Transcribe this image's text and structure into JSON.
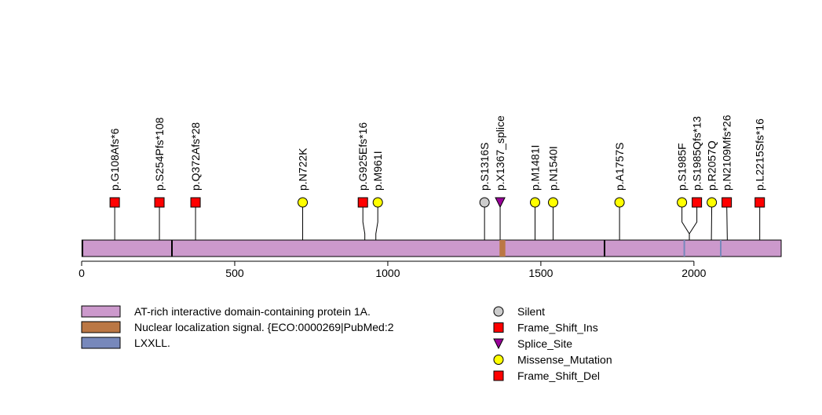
{
  "chart_data": {
    "type": "lollipop",
    "title": "",
    "protein_length": 2285,
    "axis": {
      "xlim": [
        0,
        2285
      ],
      "ticks": [
        0,
        500,
        1000,
        1500,
        2000
      ],
      "tick_labels": [
        "0",
        "500",
        "1000",
        "1500",
        "2000"
      ]
    },
    "mutation_types": [
      {
        "name": "Silent",
        "color": "#cccccc",
        "shape": "circle"
      },
      {
        "name": "Frame_Shift_Ins",
        "color": "#ff0000",
        "shape": "square"
      },
      {
        "name": "Splice_Site",
        "color": "#990099",
        "shape": "triangle"
      },
      {
        "name": "Missense_Mutation",
        "color": "#ffff00",
        "shape": "circle"
      },
      {
        "name": "Frame_Shift_Del",
        "color": "#ff0000",
        "shape": "square"
      }
    ],
    "domains": [
      {
        "name": "AT-rich interactive domain-containing protein 1A.",
        "color": "#cc99cc",
        "start": 1,
        "end": 2285
      },
      {
        "name": "Nuclear localization signal. {ECO:0000269|PubMed:2",
        "color": "#bb7744",
        "start": 1365,
        "end": 1384
      },
      {
        "name": "LXXLL.",
        "color": "#7788bb",
        "start": 1966,
        "end": 1970
      },
      {
        "name": "LXXLL.",
        "color": "#7788bb",
        "start": 2085,
        "end": 2089
      }
    ],
    "mutations": [
      {
        "label": "p.G108Afs*6",
        "position": 108,
        "type": "Frame_Shift_Del"
      },
      {
        "label": "p.S254Pfs*108",
        "position": 254,
        "type": "Frame_Shift_Del"
      },
      {
        "label": "p.Q372Afs*28",
        "position": 372,
        "type": "Frame_Shift_Del"
      },
      {
        "label": "p.N722K",
        "position": 722,
        "type": "Missense_Mutation"
      },
      {
        "label": "p.G925Efs*16",
        "position": 925,
        "type": "Frame_Shift_Del"
      },
      {
        "label": "p.M961I",
        "position": 961,
        "type": "Missense_Mutation"
      },
      {
        "label": "p.S1316S",
        "position": 1316,
        "type": "Silent"
      },
      {
        "label": "p.X1367_splice",
        "position": 1367,
        "type": "Splice_Site"
      },
      {
        "label": "p.M1481I",
        "position": 1481,
        "type": "Missense_Mutation"
      },
      {
        "label": "p.N1540I",
        "position": 1540,
        "type": "Missense_Mutation"
      },
      {
        "label": "p.A1757S",
        "position": 1757,
        "type": "Missense_Mutation"
      },
      {
        "label": "p.S1985F",
        "position": 1985,
        "type": "Missense_Mutation"
      },
      {
        "label": "p.S1985Qfs*13",
        "position": 1985,
        "type": "Frame_Shift_Ins"
      },
      {
        "label": "p.R2057Q",
        "position": 2057,
        "type": "Missense_Mutation"
      },
      {
        "label": "p.N2109Mfs*26",
        "position": 2109,
        "type": "Frame_Shift_Del"
      },
      {
        "label": "p.L2215Sfs*16",
        "position": 2215,
        "type": "Frame_Shift_Del"
      }
    ]
  }
}
